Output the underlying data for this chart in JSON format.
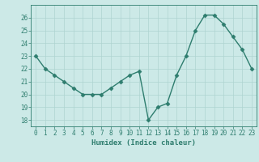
{
  "x": [
    0,
    1,
    2,
    3,
    4,
    5,
    6,
    7,
    8,
    9,
    10,
    11,
    12,
    13,
    14,
    15,
    16,
    17,
    18,
    19,
    20,
    21,
    22,
    23
  ],
  "y": [
    23,
    22,
    21.5,
    21,
    20.5,
    20,
    20,
    20,
    20.5,
    21,
    21.5,
    21.8,
    18,
    19,
    19.3,
    21.5,
    23,
    25,
    26.2,
    26.2,
    25.5,
    24.5,
    23.5,
    22
  ],
  "line_color": "#2e7d6e",
  "marker": "D",
  "bg_color": "#cce9e7",
  "grid_color": "#aed4d1",
  "xlabel": "Humidex (Indice chaleur)",
  "ylim": [
    17.5,
    27
  ],
  "xlim": [
    -0.5,
    23.5
  ],
  "yticks": [
    18,
    19,
    20,
    21,
    22,
    23,
    24,
    25,
    26
  ],
  "xticks": [
    0,
    1,
    2,
    3,
    4,
    5,
    6,
    7,
    8,
    9,
    10,
    11,
    12,
    13,
    14,
    15,
    16,
    17,
    18,
    19,
    20,
    21,
    22,
    23
  ],
  "tick_fontsize": 5.5,
  "xlabel_fontsize": 6.5,
  "linewidth": 1.0,
  "markersize": 2.5
}
